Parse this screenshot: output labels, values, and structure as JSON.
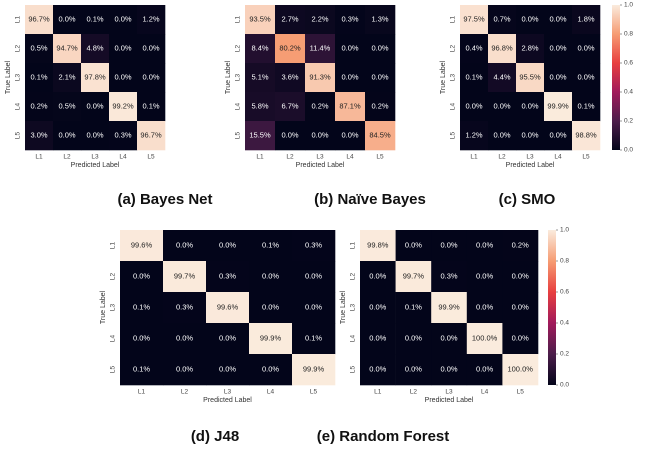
{
  "chart_data": [
    {
      "type": "heatmap",
      "caption": "(a) Bayes Net",
      "xlabel": "Predicted Label",
      "ylabel": "True Label",
      "x_categories": [
        "L1",
        "L2",
        "L3",
        "L4",
        "L5"
      ],
      "y_categories": [
        "L1",
        "L2",
        "L3",
        "L4",
        "L5"
      ],
      "values": [
        [
          0.967,
          0.0,
          0.001,
          0.0,
          0.012
        ],
        [
          0.005,
          0.947,
          0.048,
          0.0,
          0.0
        ],
        [
          0.001,
          0.021,
          0.978,
          0.0,
          0.0
        ],
        [
          0.002,
          0.005,
          0.0,
          0.992,
          0.001
        ],
        [
          0.03,
          0.0,
          0.0,
          0.003,
          0.967
        ]
      ],
      "value_labels": [
        [
          "96.7%",
          "0.0%",
          "0.1%",
          "0.0%",
          "1.2%"
        ],
        [
          "0.5%",
          "94.7%",
          "4.8%",
          "0.0%",
          "0.0%"
        ],
        [
          "0.1%",
          "2.1%",
          "97.8%",
          "0.0%",
          "0.0%"
        ],
        [
          "0.2%",
          "0.5%",
          "0.0%",
          "99.2%",
          "0.1%"
        ],
        [
          "3.0%",
          "0.0%",
          "0.0%",
          "0.3%",
          "96.7%"
        ]
      ],
      "clim": [
        0,
        1
      ],
      "colormap": [
        "#03051a",
        "#4c1d4b",
        "#a11a5b",
        "#e83f3f",
        "#f69c73",
        "#faebdd"
      ]
    },
    {
      "type": "heatmap",
      "caption": "(b) Naïve Bayes",
      "xlabel": "Predicted Label",
      "ylabel": "True Label",
      "x_categories": [
        "L1",
        "L2",
        "L3",
        "L4",
        "L5"
      ],
      "y_categories": [
        "L1",
        "L2",
        "L3",
        "L4",
        "L5"
      ],
      "values": [
        [
          0.935,
          0.027,
          0.022,
          0.003,
          0.013
        ],
        [
          0.084,
          0.802,
          0.114,
          0.0,
          0.0
        ],
        [
          0.051,
          0.036,
          0.913,
          0.0,
          0.0
        ],
        [
          0.058,
          0.067,
          0.002,
          0.871,
          0.002
        ],
        [
          0.155,
          0.0,
          0.0,
          0.0,
          0.845
        ]
      ],
      "value_labels": [
        [
          "93.5%",
          "2.7%",
          "2.2%",
          "0.3%",
          "1.3%"
        ],
        [
          "8.4%",
          "80.2%",
          "11.4%",
          "0.0%",
          "0.0%"
        ],
        [
          "5.1%",
          "3.6%",
          "91.3%",
          "0.0%",
          "0.0%"
        ],
        [
          "5.8%",
          "6.7%",
          "0.2%",
          "87.1%",
          "0.2%"
        ],
        [
          "15.5%",
          "0.0%",
          "0.0%",
          "0.0%",
          "84.5%"
        ]
      ],
      "clim": [
        0,
        1
      ],
      "colormap": [
        "#03051a",
        "#4c1d4b",
        "#a11a5b",
        "#e83f3f",
        "#f69c73",
        "#faebdd"
      ]
    },
    {
      "type": "heatmap",
      "caption": "(c) SMO",
      "xlabel": "Predicted Label",
      "ylabel": "True Label",
      "x_categories": [
        "L1",
        "L2",
        "L3",
        "L4",
        "L5"
      ],
      "y_categories": [
        "L1",
        "L2",
        "L3",
        "L4",
        "L5"
      ],
      "values": [
        [
          0.975,
          0.007,
          0.0,
          0.0,
          0.018
        ],
        [
          0.004,
          0.968,
          0.028,
          0.0,
          0.0
        ],
        [
          0.001,
          0.044,
          0.955,
          0.0,
          0.0
        ],
        [
          0.0,
          0.0,
          0.0,
          0.999,
          0.001
        ],
        [
          0.012,
          0.0,
          0.0,
          0.0,
          0.988
        ]
      ],
      "value_labels": [
        [
          "97.5%",
          "0.7%",
          "0.0%",
          "0.0%",
          "1.8%"
        ],
        [
          "0.4%",
          "96.8%",
          "2.8%",
          "0.0%",
          "0.0%"
        ],
        [
          "0.1%",
          "4.4%",
          "95.5%",
          "0.0%",
          "0.0%"
        ],
        [
          "0.0%",
          "0.0%",
          "0.0%",
          "99.9%",
          "0.1%"
        ],
        [
          "1.2%",
          "0.0%",
          "0.0%",
          "0.0%",
          "98.8%"
        ]
      ],
      "clim": [
        0,
        1
      ],
      "colormap": [
        "#03051a",
        "#4c1d4b",
        "#a11a5b",
        "#e83f3f",
        "#f69c73",
        "#faebdd"
      ],
      "cticks": [
        {
          "value": 0,
          "label": "0.0"
        },
        0.2,
        0.4,
        0.6,
        0.8,
        {
          "value": 1,
          "label": "1.0"
        }
      ]
    },
    {
      "type": "heatmap",
      "caption": "(d) J48",
      "xlabel": "Predicted Label",
      "ylabel": "True Label",
      "x_categories": [
        "L1",
        "L2",
        "L3",
        "L4",
        "L5"
      ],
      "y_categories": [
        "L1",
        "L2",
        "L3",
        "L4",
        "L5"
      ],
      "values": [
        [
          0.996,
          0.0,
          0.0,
          0.001,
          0.003
        ],
        [
          0.0,
          0.997,
          0.003,
          0.0,
          0.0
        ],
        [
          0.001,
          0.003,
          0.996,
          0.0,
          0.0
        ],
        [
          0.0,
          0.0,
          0.0,
          0.999,
          0.001
        ],
        [
          0.001,
          0.0,
          0.0,
          0.0,
          0.999
        ]
      ],
      "value_labels": [
        [
          "99.6%",
          "0.0%",
          "0.0%",
          "0.1%",
          "0.3%"
        ],
        [
          "0.0%",
          "99.7%",
          "0.3%",
          "0.0%",
          "0.0%"
        ],
        [
          "0.1%",
          "0.3%",
          "99.6%",
          "0.0%",
          "0.0%"
        ],
        [
          "0.0%",
          "0.0%",
          "0.0%",
          "99.9%",
          "0.1%"
        ],
        [
          "0.1%",
          "0.0%",
          "0.0%",
          "0.0%",
          "99.9%"
        ]
      ],
      "clim": [
        0,
        1
      ],
      "colormap": [
        "#03051a",
        "#4c1d4b",
        "#a11a5b",
        "#e83f3f",
        "#f69c73",
        "#faebdd"
      ]
    },
    {
      "type": "heatmap",
      "caption": "(e) Random Forest",
      "xlabel": "Predicted Label",
      "ylabel": "True Label",
      "x_categories": [
        "L1",
        "L2",
        "L3",
        "L4",
        "L5"
      ],
      "y_categories": [
        "L1",
        "L2",
        "L3",
        "L4",
        "L5"
      ],
      "values": [
        [
          0.998,
          0.0,
          0.0,
          0.0,
          0.002
        ],
        [
          0.0,
          0.997,
          0.003,
          0.0,
          0.0
        ],
        [
          0.0,
          0.001,
          0.999,
          0.0,
          0.0
        ],
        [
          0.0,
          0.0,
          0.0,
          1.0,
          0.0
        ],
        [
          0.0,
          0.0,
          0.0,
          0.0,
          1.0
        ]
      ],
      "value_labels": [
        [
          "99.8%",
          "0.0%",
          "0.0%",
          "0.0%",
          "0.2%"
        ],
        [
          "0.0%",
          "99.7%",
          "0.3%",
          "0.0%",
          "0.0%"
        ],
        [
          "0.0%",
          "0.1%",
          "99.9%",
          "0.0%",
          "0.0%"
        ],
        [
          "0.0%",
          "0.0%",
          "0.0%",
          "100.0%",
          "0.0%"
        ],
        [
          "0.0%",
          "0.0%",
          "0.0%",
          "0.0%",
          "100.0%"
        ]
      ],
      "clim": [
        0,
        1
      ],
      "colormap": [
        "#03051a",
        "#4c1d4b",
        "#a11a5b",
        "#e83f3f",
        "#f69c73",
        "#faebdd"
      ],
      "cticks": [
        {
          "value": 0,
          "label": "0.0"
        },
        0.2,
        0.4,
        0.6,
        0.8,
        {
          "value": 1,
          "label": "1.0"
        }
      ]
    }
  ]
}
